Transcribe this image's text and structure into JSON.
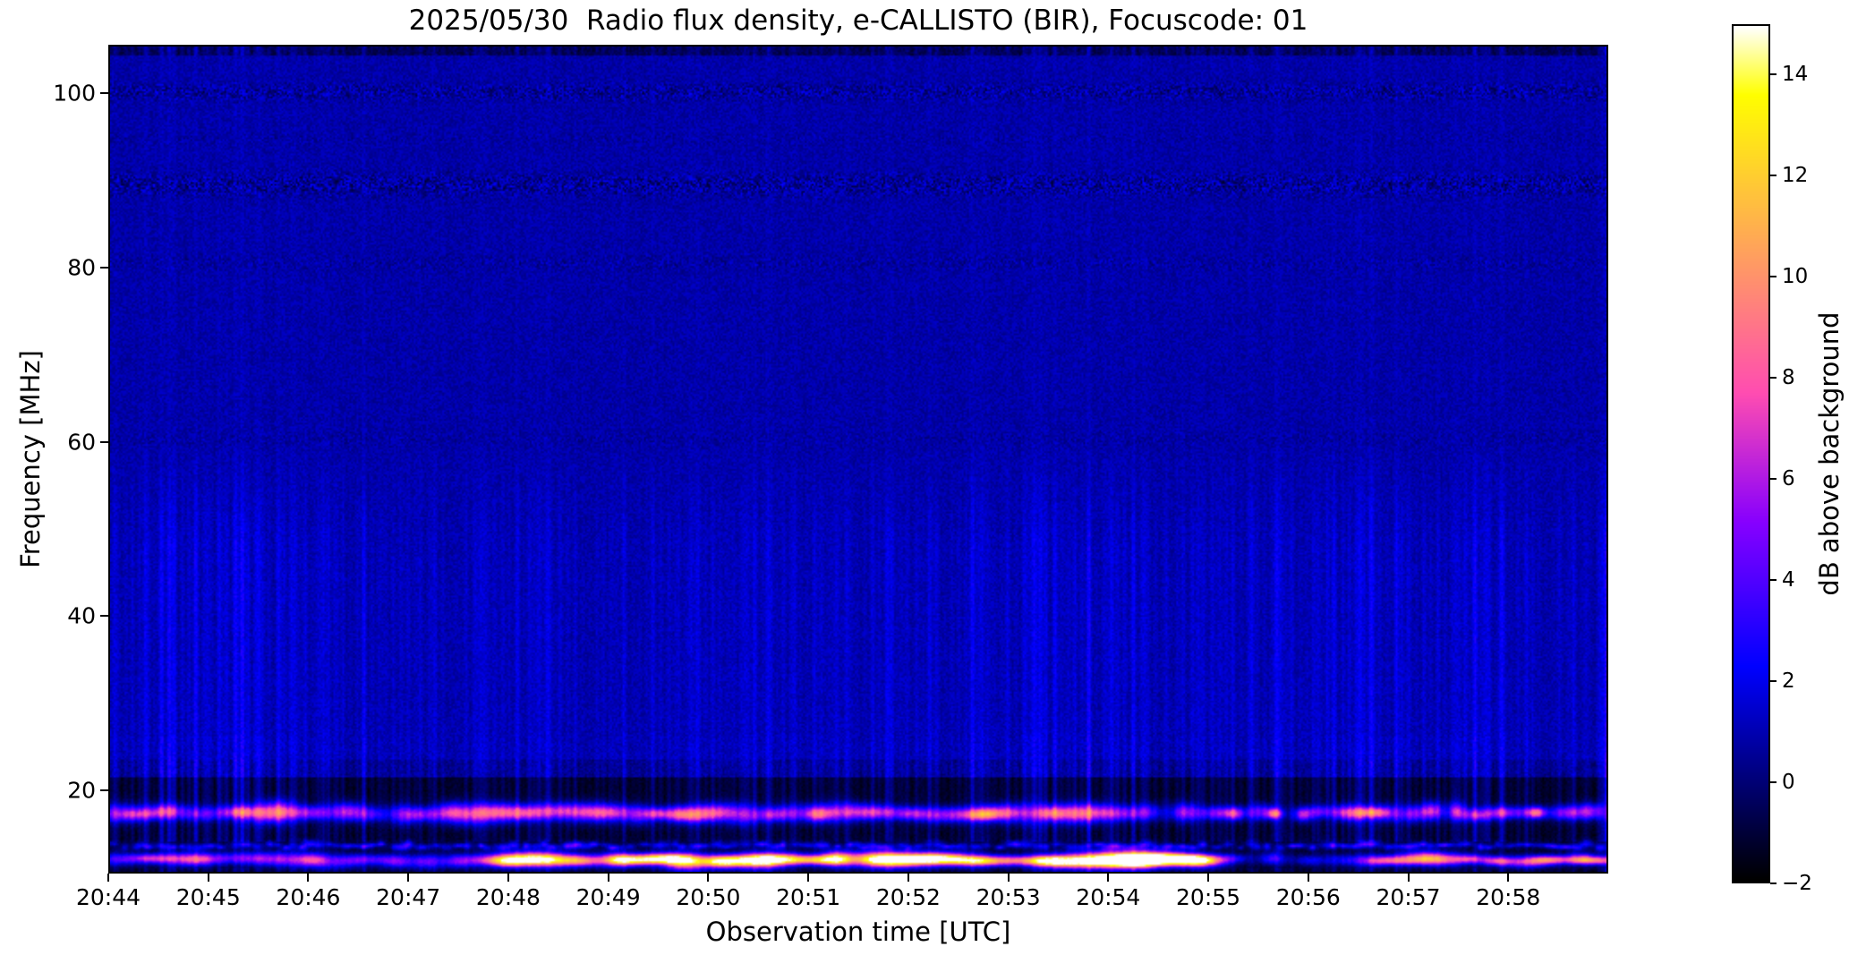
{
  "figure": {
    "background": "#ffffff",
    "text_color": "#000000"
  },
  "chart_data": {
    "type": "heatmap",
    "title": "2025/05/30  Radio flux density, e-CALLISTO (BIR), Focuscode: 01",
    "xlabel": "Observation time [UTC]",
    "ylabel": "Frequency [MHz]",
    "x_ticks": [
      "20:44",
      "20:45",
      "20:46",
      "20:47",
      "20:48",
      "20:49",
      "20:50",
      "20:51",
      "20:52",
      "20:53",
      "20:54",
      "20:55",
      "20:56",
      "20:57",
      "20:58"
    ],
    "x_range": [
      "20:44:00",
      "20:59:00"
    ],
    "x_total_minutes": 15,
    "y_ticks": [
      100,
      80,
      60,
      40,
      20
    ],
    "y_range_mhz": [
      10.5,
      105.5
    ],
    "grid": false,
    "colorbar": {
      "label": "dB above background",
      "tick_values": [
        14,
        12,
        10,
        8,
        6,
        4,
        2,
        0,
        -2
      ],
      "tick_labels": [
        "14",
        "12",
        "10",
        "8",
        "6",
        "4",
        "2",
        "0",
        "−2"
      ],
      "range": [
        -2,
        15
      ],
      "colormap": "gnuplot2",
      "position": "right"
    },
    "heatmap": {
      "seed": 7,
      "background_db": 0.72,
      "noise_db": 0.55,
      "floor_db": -1.55,
      "floor_top_mhz": 21.4,
      "dash_band_mhz": [
        21.4,
        23.4
      ],
      "top_edge_mhz": 104.4,
      "striation_band_mhz": [
        23.4,
        48
      ],
      "mottle_bands": [
        [
          100.3,
          1.1,
          1.0
        ],
        [
          94.9,
          0.7,
          0.3
        ],
        [
          89.6,
          1.5,
          1.1
        ],
        [
          80.6,
          1.0,
          0.5
        ],
        [
          60.3,
          0.9,
          0.35
        ]
      ],
      "band_glows": [
        [
          17.25,
          0.9,
          0.9
        ],
        [
          13.5,
          0.5,
          0.5
        ],
        [
          11.85,
          0.7,
          0.6
        ]
      ],
      "blob_rows": [
        {
          "freq_mhz": 17.25,
          "regions": [
            {
              "t": [
                0,
                1250
              ],
              "amp": [
                3.0,
                6.5
              ],
              "spacing": [
                16,
                44
              ],
              "st": [
                10,
                26
              ],
              "sf": [
                0.45,
                0.85
              ]
            },
            {
              "t": [
                1250,
                1676
              ],
              "amp": [
                4.0,
                8.5
              ],
              "spacing": [
                14,
                34
              ],
              "st": [
                6,
                14
              ],
              "sf": [
                0.4,
                0.7
              ]
            }
          ]
        },
        {
          "freq_mhz": 13.5,
          "regions": [
            {
              "t": [
                0,
                1676
              ],
              "amp": [
                2.0,
                4.0
              ],
              "spacing": [
                6,
                16
              ],
              "st": [
                2.5,
                6
              ],
              "sf": [
                0.16,
                0.3
              ]
            }
          ]
        },
        {
          "freq_mhz": 11.85,
          "regions": [
            {
              "t": [
                0,
                430
              ],
              "amp": [
                3.2,
                6.0
              ],
              "spacing": [
                18,
                40
              ],
              "st": [
                10,
                24
              ],
              "sf": [
                0.35,
                0.6
              ]
            },
            {
              "t": [
                430,
                1240
              ],
              "amp": [
                8.5,
                12.5
              ],
              "spacing": [
                16,
                44
              ],
              "st": [
                12,
                30
              ],
              "sf": [
                0.35,
                0.65
              ]
            },
            {
              "t": [
                1240,
                1430
              ],
              "amp": [
                2.5,
                4.5
              ],
              "spacing": [
                20,
                50
              ],
              "st": [
                8,
                18
              ],
              "sf": [
                0.3,
                0.5
              ]
            },
            {
              "t": [
                1430,
                1676
              ],
              "amp": [
                4.5,
                9.5
              ],
              "spacing": [
                16,
                40
              ],
              "st": [
                10,
                22
              ],
              "sf": [
                0.33,
                0.6
              ]
            }
          ]
        }
      ]
    }
  }
}
